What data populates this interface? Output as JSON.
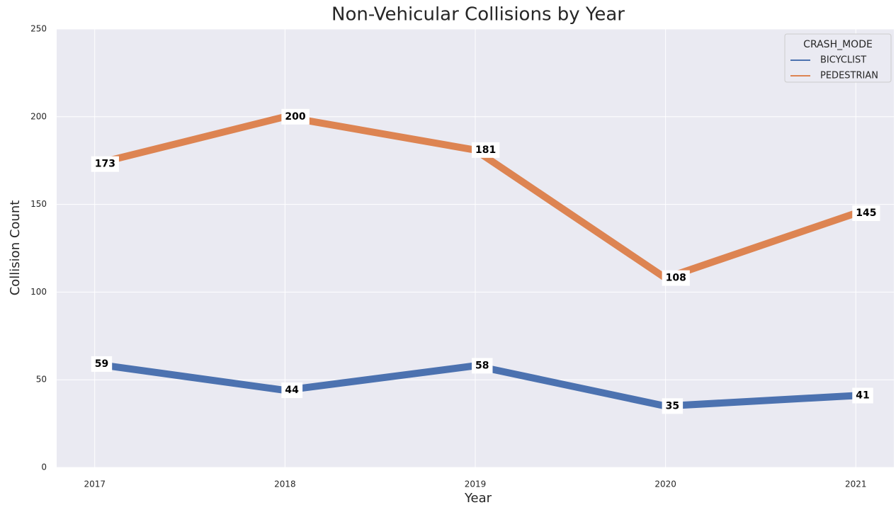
{
  "chart_data": {
    "type": "line",
    "title": "Non-Vehicular Collisions by Year",
    "x_label": "Year",
    "y_label": "Collision Count",
    "x": [
      2017,
      2018,
      2019,
      2020,
      2021
    ],
    "series": [
      {
        "name": "BICYCLIST",
        "color": "#4c72b0",
        "values": [
          59,
          44,
          58,
          35,
          41
        ]
      },
      {
        "name": "PEDESTRIAN",
        "color": "#dd8452",
        "values": [
          173,
          200,
          181,
          108,
          145
        ]
      }
    ],
    "xlim": [
      2016.8,
      2021.2
    ],
    "xticks": [
      2017,
      2018,
      2019,
      2020,
      2021
    ],
    "ylim": [
      0,
      250
    ],
    "yticks": [
      0,
      50,
      100,
      150,
      200,
      250
    ],
    "grid": true,
    "legend": {
      "title": "CRASH_MODE",
      "position": "upper right"
    }
  }
}
